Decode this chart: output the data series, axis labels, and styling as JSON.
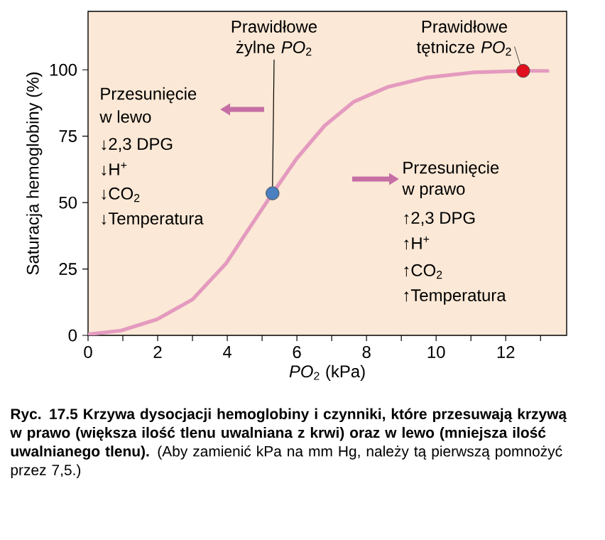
{
  "chart_data": {
    "type": "line",
    "xlabel": "*PO*$_{2}$ (kPa)",
    "ylabel": "Saturacja hemoglobiny (%)",
    "xlim": [
      0,
      13.75
    ],
    "ylim": [
      0,
      122
    ],
    "xticks": [
      0,
      {
        "value": 1,
        "label": null
      },
      2,
      {
        "value": 3,
        "label": null
      },
      4,
      {
        "value": 5,
        "label": null
      },
      6,
      {
        "value": 7,
        "label": null
      },
      8,
      {
        "value": 9,
        "label": null
      },
      10,
      {
        "value": 11,
        "label": null
      },
      12,
      {
        "value": 13,
        "label": null
      }
    ],
    "yticks": [
      0,
      25,
      50,
      75,
      100
    ],
    "series": [
      {
        "color": "#e49abf",
        "marker": "none",
        "line_style": "solid",
        "x": [
          0,
          0.95,
          1.98,
          3,
          3.96,
          4.64,
          5.3,
          6,
          6.8,
          7.64,
          8.6,
          9.7,
          11.05,
          12.5,
          13.2
        ],
        "values": [
          0.4,
          1.8,
          6,
          13.5,
          27,
          40.5,
          53.5,
          66.7,
          79,
          88,
          93.5,
          97,
          99,
          99.6,
          99.6
        ]
      },
      {
        "type": "scatter",
        "marker": "circle",
        "x": [
          5.3,
          12.5
        ],
        "values": [
          53.5,
          99.6
        ],
        "colors": [
          "#4a7fc0",
          "#e0101f"
        ]
      }
    ],
    "annotations": [
      {
        "text": "Prawidłowe żylne *PO*$_{2}$",
        "x": 5.3,
        "y": 53.5
      },
      {
        "text": "Prawidłowe tętnicze *PO*$_{2}$",
        "x": 12.5,
        "y": 99.6
      },
      "Przesunięcie",
      "w lewo",
      "↓2,3 DPG",
      "↓H$^{+}$",
      "↓CO$_{2}$",
      "↓Temperatura",
      "Przesunięcie",
      "w prawo",
      "↑2,3 DPG",
      "↑H$^{+}$",
      "↑CO$_{2}$",
      "↑Temperatura",
      "**Ryc. 17.5 Krzywa dysocjacji hemoglobiny i czynniki, które przesuwają krzywą w prawo (większa ilość tlenu uwalniana z krwi) oraz w lewo (mniejsza ilość uwalnianego tlenu).** (Aby zamienić kPa na mm Hg, należy tą pierwszą pomnożyć przez 7,5.)"
    ]
  }
}
